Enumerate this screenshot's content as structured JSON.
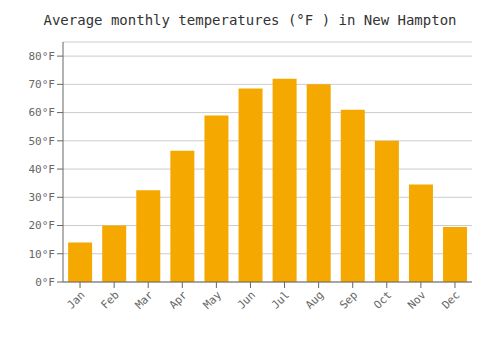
{
  "chart_data": {
    "type": "bar",
    "title": "Average monthly temperatures (°F ) in New Hampton",
    "categories": [
      "Jan",
      "Feb",
      "Mar",
      "Apr",
      "May",
      "Jun",
      "Jul",
      "Aug",
      "Sep",
      "Oct",
      "Nov",
      "Dec"
    ],
    "values": [
      14,
      20,
      32.5,
      46.5,
      59,
      68.5,
      72,
      70,
      61,
      50,
      34.5,
      19.5
    ],
    "color": "#F5A800",
    "ylim": [
      0,
      85
    ],
    "yticks": [
      {
        "value": 0,
        "label": "0°F"
      },
      {
        "value": 10,
        "label": "10°F"
      },
      {
        "value": 20,
        "label": "20°F"
      },
      {
        "value": 30,
        "label": "30°F"
      },
      {
        "value": 40,
        "label": "40°F"
      },
      {
        "value": 50,
        "label": "50°F"
      },
      {
        "value": 60,
        "label": "60°F"
      },
      {
        "value": 70,
        "label": "70°F"
      },
      {
        "value": 80,
        "label": "80°F"
      }
    ],
    "grid": true
  }
}
